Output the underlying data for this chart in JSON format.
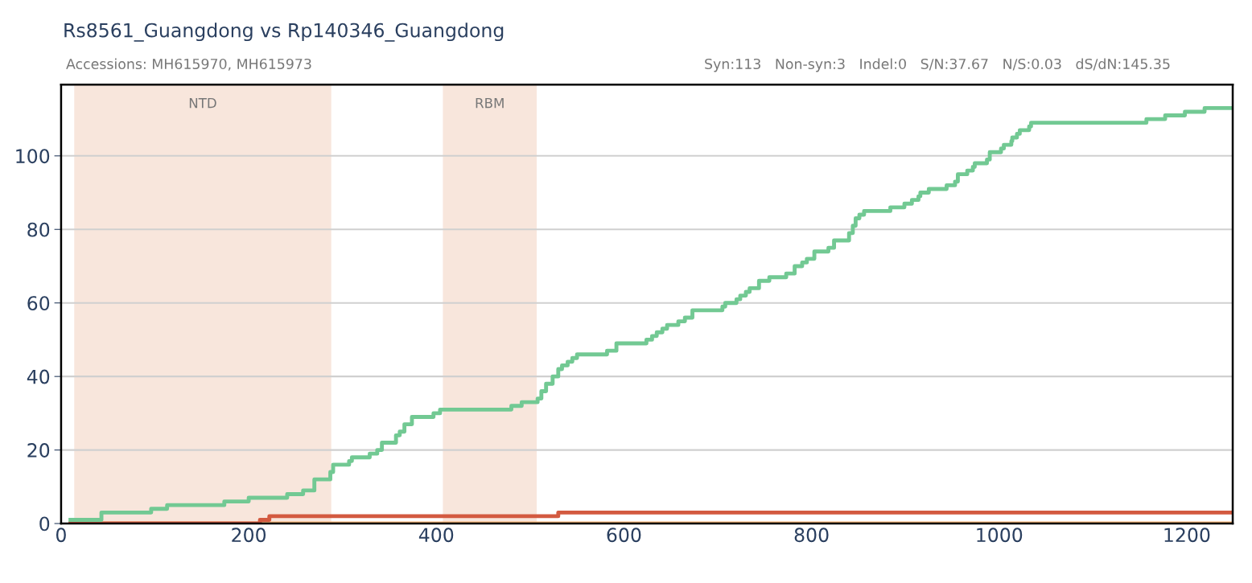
{
  "chart_data": {
    "type": "step",
    "title": "Rs8561_Guangdong vs Rp140346_Guangdong",
    "subtitle": "Accessions: MH615970, MH615973",
    "annotations": [
      "Syn:113   Non-syn:3   Indel:0   S/N:37.67   N/S:0.03   dS/dN:145.35"
    ],
    "series": [
      {
        "color": "#72c993",
        "x": [
          10,
          43,
          96,
          113,
          174,
          200,
          241,
          258,
          270,
          287,
          290,
          294,
          307,
          310,
          329,
          337,
          342,
          357,
          361,
          366,
          374,
          397,
          404,
          480,
          491,
          508,
          512,
          517,
          524,
          530,
          534,
          540,
          545,
          550,
          582,
          592,
          624,
          630,
          635,
          641,
          646,
          658,
          665,
          673,
          705,
          708,
          720,
          724,
          730,
          734,
          744,
          755,
          773,
          782,
          790,
          795,
          803,
          818,
          824,
          840,
          844,
          847,
          851,
          856,
          884,
          899,
          907,
          914,
          916,
          925,
          944,
          953,
          956,
          966,
          972,
          974,
          987,
          990,
          1002,
          1005,
          1013,
          1014,
          1019,
          1022,
          1032,
          1034,
          1157,
          1177,
          1198,
          1219,
          1249
        ],
        "values": [
          1,
          3,
          4,
          5,
          6,
          7,
          8,
          9,
          12,
          14,
          16,
          16,
          17,
          18,
          19,
          20,
          22,
          24,
          25,
          27,
          29,
          30,
          31,
          32,
          33,
          34,
          36,
          38,
          40,
          42,
          43,
          44,
          45,
          46,
          47,
          49,
          50,
          51,
          52,
          53,
          54,
          55,
          56,
          58,
          59,
          60,
          61,
          62,
          63,
          64,
          66,
          67,
          68,
          70,
          71,
          72,
          74,
          75,
          77,
          79,
          81,
          83,
          84,
          85,
          86,
          87,
          88,
          89,
          90,
          91,
          92,
          93,
          95,
          96,
          97,
          98,
          99,
          101,
          102,
          103,
          104,
          105,
          106,
          107,
          108,
          109,
          110,
          111,
          112,
          113,
          113
        ]
      },
      {
        "color": "#d35a40",
        "x": [
          10,
          212,
          222,
          530,
          1249
        ],
        "values": [
          0,
          1,
          2,
          3,
          3
        ]
      },
      {
        "color": "#f5b070",
        "x": [
          10,
          1249
        ],
        "values": [
          0,
          0
        ]
      }
    ],
    "bands": [
      {
        "axis": "x",
        "from": 14,
        "to": 288,
        "label": "NTD",
        "color": "#f8e6dc"
      },
      {
        "axis": "x",
        "from": 407,
        "to": 507,
        "label": "RBM",
        "color": "#f8e6dc"
      }
    ],
    "xlim": [
      0,
      1249
    ],
    "ylim": [
      0,
      119.4
    ],
    "xticks": [
      0,
      200,
      400,
      600,
      800,
      1000,
      1200
    ],
    "yticks": [
      0,
      20,
      40,
      60,
      80,
      100
    ],
    "grid": "y"
  }
}
